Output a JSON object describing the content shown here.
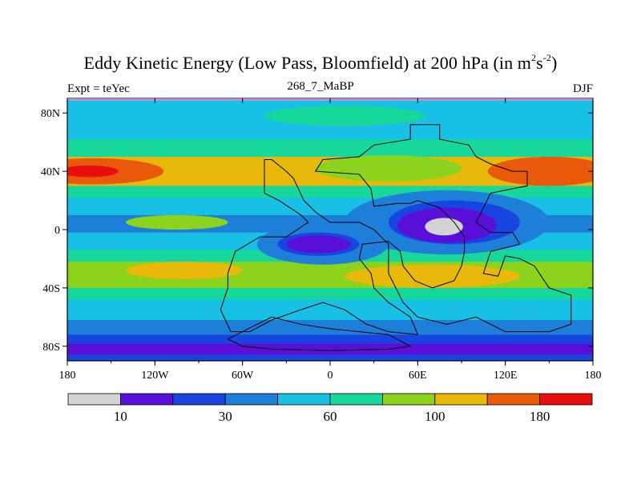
{
  "title_main": "Eddy Kinetic Energy (Low Pass, Bloomfield) at 200 hPa (in m",
  "title_sup1": "2",
  "title_mid": "s",
  "title_sup2": "-2",
  "title_end": ")",
  "subtitle": "268_7_MaBP",
  "left_label": "Expt = teYec",
  "right_label": "DJF",
  "chart_data": {
    "type": "heatmap",
    "title": "Eddy Kinetic Energy (Low Pass, Bloomfield) at 200 hPa (in m2s-2)",
    "subtitle": "268_7_MaBP",
    "experiment": "Expt = teYec",
    "season": "DJF",
    "xlabel": "",
    "ylabel": "",
    "xlim": [
      -180,
      180
    ],
    "ylim": [
      -90,
      90
    ],
    "x_ticks": [
      {
        "value": -180,
        "label": "180"
      },
      {
        "value": -120,
        "label": "120W"
      },
      {
        "value": -60,
        "label": "60W"
      },
      {
        "value": 0,
        "label": "0"
      },
      {
        "value": 60,
        "label": "60E"
      },
      {
        "value": 120,
        "label": "120E"
      },
      {
        "value": 180,
        "label": "180"
      }
    ],
    "y_ticks": [
      {
        "value": 80,
        "label": "80N"
      },
      {
        "value": 40,
        "label": "40N"
      },
      {
        "value": 0,
        "label": "0"
      },
      {
        "value": -40,
        "label": "40S"
      },
      {
        "value": -80,
        "label": "80S"
      }
    ],
    "colorbar": {
      "levels": [
        10,
        20,
        30,
        40,
        60,
        80,
        100,
        120,
        180
      ],
      "tick_labels": [
        {
          "value": 10,
          "label": "10"
        },
        {
          "value": 30,
          "label": "30"
        },
        {
          "value": 60,
          "label": "60"
        },
        {
          "value": 100,
          "label": "100"
        },
        {
          "value": 180,
          "label": "180"
        }
      ],
      "colors": [
        "#d3d3d3",
        "#5a0fd8",
        "#1845e0",
        "#1e7fd8",
        "#18c0e6",
        "#17d89a",
        "#8bd31c",
        "#e8b80a",
        "#e85a0a",
        "#e80e0e"
      ]
    },
    "bands": [
      {
        "lat": [
          -90,
          -86
        ],
        "class": 2
      },
      {
        "lat": [
          -86,
          -78
        ],
        "class": 1
      },
      {
        "lat": [
          -78,
          -72
        ],
        "class": 2
      },
      {
        "lat": [
          -72,
          -62
        ],
        "class": 3
      },
      {
        "lat": [
          -62,
          -48
        ],
        "class": 4
      },
      {
        "lat": [
          -48,
          -40
        ],
        "class": 5
      },
      {
        "lat": [
          -40,
          -22
        ],
        "class": 6
      },
      {
        "lat": [
          -22,
          -14
        ],
        "class": 5
      },
      {
        "lat": [
          -14,
          -2
        ],
        "class": 4
      },
      {
        "lat": [
          -2,
          10
        ],
        "class": 3
      },
      {
        "lat": [
          10,
          22
        ],
        "class": 4
      },
      {
        "lat": [
          22,
          30
        ],
        "class": 5
      },
      {
        "lat": [
          30,
          50
        ],
        "class": 7
      },
      {
        "lat": [
          50,
          62
        ],
        "class": 5
      },
      {
        "lat": [
          62,
          90
        ],
        "class": 4
      }
    ],
    "blobs": [
      {
        "lon": -162,
        "lat": 40,
        "rlon": 48,
        "rlat": 9,
        "class": 8
      },
      {
        "lon": -165,
        "lat": 40,
        "rlon": 20,
        "rlat": 4,
        "class": 9
      },
      {
        "lon": 150,
        "lat": 40,
        "rlon": 42,
        "rlat": 10,
        "class": 8
      },
      {
        "lon": 40,
        "lat": 42,
        "rlon": 50,
        "rlat": 9,
        "class": 6
      },
      {
        "lon": 70,
        "lat": -32,
        "rlon": 60,
        "rlat": 8,
        "class": 7
      },
      {
        "lon": -100,
        "lat": -28,
        "rlon": 40,
        "rlat": 6,
        "class": 7
      },
      {
        "lon": -105,
        "lat": 5,
        "rlon": 35,
        "rlat": 5,
        "class": 6
      },
      {
        "lon": 80,
        "lat": 5,
        "rlon": 70,
        "rlat": 22,
        "class": 3
      },
      {
        "lon": -5,
        "lat": -10,
        "rlon": 45,
        "rlat": 14,
        "class": 3
      },
      {
        "lon": 85,
        "lat": 5,
        "rlon": 45,
        "rlat": 15,
        "class": 2
      },
      {
        "lon": -8,
        "lat": -10,
        "rlon": 28,
        "rlat": 8,
        "class": 2
      },
      {
        "lon": 80,
        "lat": 3,
        "rlon": 34,
        "rlat": 12,
        "class": 1
      },
      {
        "lon": -8,
        "lat": -10,
        "rlon": 22,
        "rlat": 6,
        "class": 1
      },
      {
        "lon": 78,
        "lat": 2,
        "rlon": 13,
        "rlat": 6,
        "class": 0
      },
      {
        "lon": 10,
        "lat": 78,
        "rlon": 55,
        "rlat": 7,
        "class": 5
      }
    ],
    "outlines": [
      [
        [
          46,
          18
        ],
        [
          30,
          16
        ],
        [
          28,
          28
        ],
        [
          20,
          38
        ],
        [
          -10,
          40
        ],
        [
          -5,
          48
        ],
        [
          20,
          50
        ],
        [
          30,
          58
        ],
        [
          55,
          62
        ],
        [
          55,
          72
        ],
        [
          75,
          72
        ],
        [
          75,
          62
        ],
        [
          95,
          58
        ],
        [
          100,
          50
        ],
        [
          110,
          45
        ],
        [
          125,
          40
        ],
        [
          135,
          40
        ],
        [
          135,
          30
        ],
        [
          110,
          25
        ],
        [
          105,
          15
        ],
        [
          100,
          5
        ],
        [
          110,
          -2
        ],
        [
          125,
          -2
        ],
        [
          130,
          -10
        ],
        [
          110,
          -15
        ],
        [
          105,
          -30
        ],
        [
          115,
          -32
        ],
        [
          120,
          -18
        ],
        [
          130,
          -20
        ],
        [
          140,
          -25
        ],
        [
          150,
          -40
        ],
        [
          165,
          -45
        ],
        [
          165,
          -65
        ],
        [
          150,
          -70
        ],
        [
          120,
          -70
        ],
        [
          100,
          -60
        ],
        [
          80,
          -65
        ],
        [
          60,
          -60
        ],
        [
          50,
          -50
        ],
        [
          40,
          -30
        ],
        [
          40,
          -10
        ],
        [
          30,
          0
        ],
        [
          20,
          5
        ],
        [
          0,
          5
        ],
        [
          -10,
          12
        ],
        [
          -18,
          20
        ],
        [
          -25,
          35
        ],
        [
          -30,
          40
        ],
        [
          -40,
          48
        ],
        [
          -45,
          48
        ],
        [
          -45,
          25
        ],
        [
          -35,
          20
        ],
        [
          -20,
          10
        ],
        [
          -15,
          5
        ],
        [
          -30,
          -5
        ],
        [
          -48,
          -5
        ],
        [
          -65,
          -15
        ],
        [
          -70,
          -30
        ],
        [
          -70,
          -40
        ],
        [
          -75,
          -55
        ],
        [
          -68,
          -70
        ],
        [
          -55,
          -70
        ],
        [
          -40,
          -62
        ],
        [
          -20,
          -55
        ],
        [
          -5,
          -50
        ],
        [
          10,
          -55
        ],
        [
          25,
          -65
        ],
        [
          40,
          -70
        ],
        [
          60,
          -72
        ],
        [
          55,
          -60
        ],
        [
          40,
          -50
        ],
        [
          30,
          -40
        ],
        [
          28,
          -30
        ],
        [
          20,
          -20
        ],
        [
          22,
          -10
        ],
        [
          40,
          -8
        ],
        [
          48,
          -15
        ],
        [
          50,
          -25
        ],
        [
          58,
          -35
        ],
        [
          70,
          -40
        ],
        [
          85,
          -35
        ],
        [
          90,
          -25
        ],
        [
          92,
          -15
        ],
        [
          92,
          -5
        ],
        [
          85,
          5
        ],
        [
          75,
          15
        ],
        [
          60,
          20
        ],
        [
          55,
          18
        ],
        [
          46,
          18
        ]
      ],
      [
        [
          -60,
          -70
        ],
        [
          -40,
          -60
        ],
        [
          -20,
          -65
        ],
        [
          0,
          -68
        ],
        [
          20,
          -70
        ],
        [
          40,
          -72
        ],
        [
          55,
          -80
        ],
        [
          40,
          -82
        ],
        [
          0,
          -83
        ],
        [
          -40,
          -82
        ],
        [
          -60,
          -80
        ],
        [
          -70,
          -75
        ],
        [
          -60,
          -70
        ]
      ]
    ]
  }
}
